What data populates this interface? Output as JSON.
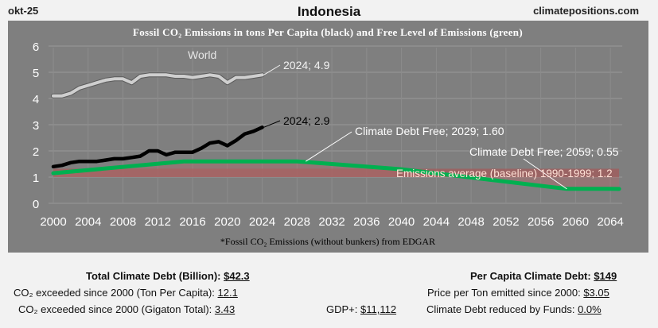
{
  "header": {
    "date": "okt-25",
    "country": "Indonesia",
    "site": "climatepositions.com"
  },
  "chart_data": {
    "type": "line",
    "title": "Fossil CO₂ Emissions in tons Per Capita (black) and Free Level of Emissions (green)",
    "footnote": "*Fossil CO₂ Emissions (without bunkers) from EDGAR",
    "xlim": [
      2000,
      2065
    ],
    "ylim": [
      0,
      6
    ],
    "x_ticks": [
      "2000",
      "2004",
      "2008",
      "2012",
      "2016",
      "2020",
      "2024",
      "2028",
      "2032",
      "2036",
      "2040",
      "2044",
      "2048",
      "2052",
      "2056",
      "2060",
      "2064"
    ],
    "y_ticks": [
      "0",
      "1",
      "2",
      "3",
      "4",
      "5",
      "6"
    ],
    "grid": true,
    "series": [
      {
        "name": "World",
        "color": "#cfcfcf",
        "x": [
          2000,
          2001,
          2002,
          2003,
          2004,
          2005,
          2006,
          2007,
          2008,
          2009,
          2010,
          2011,
          2012,
          2013,
          2014,
          2015,
          2016,
          2017,
          2018,
          2019,
          2020,
          2021,
          2022,
          2023,
          2024
        ],
        "y": [
          4.1,
          4.1,
          4.2,
          4.4,
          4.5,
          4.6,
          4.7,
          4.75,
          4.75,
          4.6,
          4.85,
          4.9,
          4.9,
          4.9,
          4.85,
          4.85,
          4.8,
          4.85,
          4.9,
          4.85,
          4.6,
          4.8,
          4.8,
          4.85,
          4.9
        ]
      },
      {
        "name": "Indonesia",
        "color": "#000000",
        "x": [
          2000,
          2001,
          2002,
          2003,
          2004,
          2005,
          2006,
          2007,
          2008,
          2009,
          2010,
          2011,
          2012,
          2013,
          2014,
          2015,
          2016,
          2017,
          2018,
          2019,
          2020,
          2021,
          2022,
          2023,
          2024
        ],
        "y": [
          1.4,
          1.45,
          1.55,
          1.6,
          1.6,
          1.6,
          1.65,
          1.7,
          1.7,
          1.75,
          1.8,
          2.0,
          2.0,
          1.85,
          1.95,
          1.95,
          1.95,
          2.1,
          2.3,
          2.35,
          2.2,
          2.4,
          2.65,
          2.75,
          2.9
        ]
      },
      {
        "name": "Free Level",
        "color": "#00b050",
        "x": [
          2000,
          2015,
          2028,
          2040,
          2059,
          2064
        ],
        "y": [
          1.15,
          1.6,
          1.6,
          1.3,
          0.55,
          0.55
        ]
      }
    ],
    "baseline": 1.2,
    "annotations": {
      "world_label": "World",
      "world_2024": "2024; 4.9",
      "indonesia_2024": "2024; 2.9",
      "free_2029": "Climate Debt Free; 2029; 1.60",
      "free_2059": "Climate Debt Free; 2059; 0.55",
      "baseline_label": "Emissions average (baseline) 1990-1999; 1.2"
    }
  },
  "stats": {
    "total_debt_label": "Total Climate Debt (Billion):",
    "total_debt_value": "$42.3",
    "per_capita_debt_label": "Per Capita Climate Debt:",
    "per_capita_debt_value": "$149",
    "co2_ton_label": "CO₂ exceeded since 2000 (Ton Per Capita):",
    "co2_ton_value": "12.1",
    "price_label": "Price per Ton emitted since 2000:",
    "price_value": "$3.05",
    "co2_gt_label": "CO₂ exceeded since 2000 (Gigaton Total):",
    "co2_gt_value": "3.43",
    "gdp_label": "GDP+:",
    "gdp_value": "$11,112",
    "funds_label": "Climate Debt reduced by Funds:",
    "funds_value": "0.0%"
  }
}
